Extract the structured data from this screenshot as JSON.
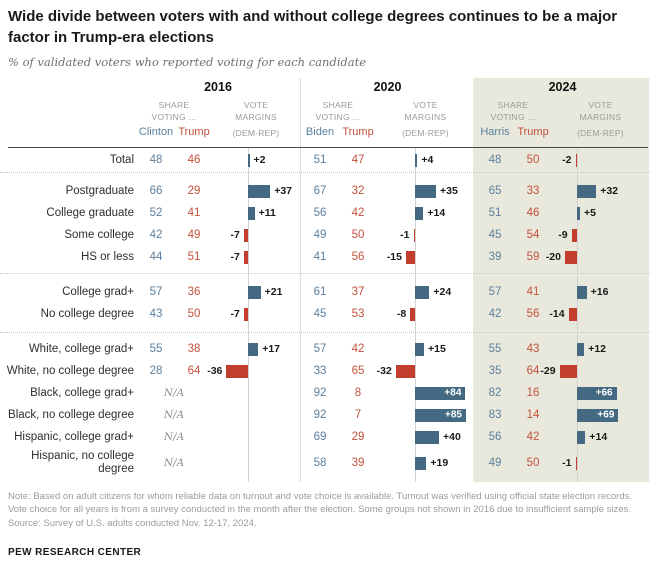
{
  "header": {
    "title": "Wide divide between voters with and without college degrees continues to be a major factor in Trump-era elections",
    "subtitle": "% of validated voters who reported voting for each candidate"
  },
  "table": {
    "col_headers": {
      "share_1": "SHARE",
      "share_2": "VOTING ...",
      "vote_1": "VOTE",
      "vote_2": "MARGINS",
      "vote_3": "(DEM-REP)"
    },
    "years": [
      {
        "year": "2016",
        "dem": "Clinton",
        "rep": "Trump"
      },
      {
        "year": "2020",
        "dem": "Biden",
        "rep": "Trump"
      },
      {
        "year": "2024",
        "dem": "Harris",
        "rep": "Trump"
      }
    ],
    "na_label": "N/A"
  },
  "colors": {
    "dem_bar": "#436983",
    "rep_bar": "#c23d2c",
    "dem_text": "#5b7f9d",
    "rep_text": "#c4513c",
    "panel_2024_bg": "#e9e8dc"
  },
  "chart_data": {
    "type": "table",
    "title": "Wide divide between voters with and without college degrees continues to be a major factor in Trump-era elections",
    "subtitle": "% of validated voters who reported voting for each candidate",
    "years": [
      "2016",
      "2020",
      "2024"
    ],
    "candidates": {
      "2016": [
        "Clinton",
        "Trump"
      ],
      "2020": [
        "Biden",
        "Trump"
      ],
      "2024": [
        "Harris",
        "Trump"
      ]
    },
    "columns_per_year": [
      "dem_share_pct",
      "rep_share_pct",
      "vote_margin_dem_minus_rep"
    ],
    "groups": [
      {
        "rows": [
          {
            "label": "Total",
            "values": [
              [
                48,
                46,
                2
              ],
              [
                51,
                47,
                4
              ],
              [
                48,
                50,
                -2
              ]
            ]
          }
        ]
      },
      {
        "rows": [
          {
            "label": "Postgraduate",
            "values": [
              [
                66,
                29,
                37
              ],
              [
                67,
                32,
                35
              ],
              [
                65,
                33,
                32
              ]
            ]
          },
          {
            "label": "College graduate",
            "values": [
              [
                52,
                41,
                11
              ],
              [
                56,
                42,
                14
              ],
              [
                51,
                46,
                5
              ]
            ]
          },
          {
            "label": "Some college",
            "values": [
              [
                42,
                49,
                -7
              ],
              [
                49,
                50,
                -1
              ],
              [
                45,
                54,
                -9
              ]
            ]
          },
          {
            "label": "HS or less",
            "values": [
              [
                44,
                51,
                -7
              ],
              [
                41,
                56,
                -15
              ],
              [
                39,
                59,
                -20
              ]
            ]
          }
        ]
      },
      {
        "rows": [
          {
            "label": "College grad+",
            "values": [
              [
                57,
                36,
                21
              ],
              [
                61,
                37,
                24
              ],
              [
                57,
                41,
                16
              ]
            ]
          },
          {
            "label": "No college degree",
            "values": [
              [
                43,
                50,
                -7
              ],
              [
                45,
                53,
                -8
              ],
              [
                42,
                56,
                -14
              ]
            ]
          }
        ]
      },
      {
        "rows": [
          {
            "label": "White, college grad+",
            "values": [
              [
                55,
                38,
                17
              ],
              [
                57,
                42,
                15
              ],
              [
                55,
                43,
                12
              ]
            ]
          },
          {
            "label": "White, no college degree",
            "values": [
              [
                28,
                64,
                -36
              ],
              [
                33,
                65,
                -32
              ],
              [
                35,
                64,
                -29
              ]
            ]
          },
          {
            "label": "Black, college grad+",
            "values": [
              null,
              [
                92,
                8,
                84
              ],
              [
                82,
                16,
                66
              ]
            ]
          },
          {
            "label": "Black, no college degree",
            "values": [
              null,
              [
                92,
                7,
                85
              ],
              [
                83,
                14,
                69
              ]
            ]
          },
          {
            "label": "Hispanic, college grad+",
            "values": [
              null,
              [
                69,
                29,
                40
              ],
              [
                56,
                42,
                14
              ]
            ]
          },
          {
            "label": "Hispanic, no college degree",
            "values": [
              null,
              [
                58,
                39,
                19
              ],
              [
                49,
                50,
                -1
              ]
            ],
            "tall": true
          }
        ]
      }
    ]
  },
  "footer": {
    "note": "Note: Based on adult citizens for whom reliable data on turnout and vote choice is available. Turnout was verified using official state election records. Vote choice for all years is from a survey conducted in the month after the election. Some groups not shown in 2016 due to insufficient sample sizes.",
    "source": "Source: Survey of U.S. adults conducted Nov. 12-17, 2024.",
    "brand": "PEW RESEARCH CENTER"
  }
}
